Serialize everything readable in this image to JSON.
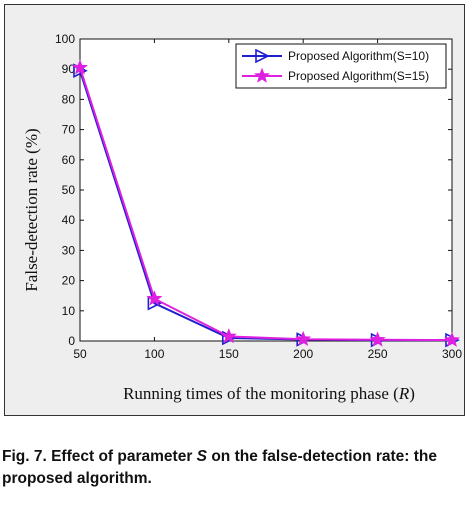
{
  "chart_data": {
    "type": "line",
    "title": "",
    "xlabel_text": "Running times of the monitoring phase (",
    "xlabel_var": "R",
    "xlabel_close": ")",
    "ylabel": "False-detection rate (%)",
    "x": [
      50,
      100,
      150,
      200,
      250,
      300
    ],
    "xlim": [
      50,
      300
    ],
    "ylim": [
      0,
      100
    ],
    "x_ticks": [
      "50",
      "100",
      "150",
      "200",
      "250",
      "300"
    ],
    "y_ticks": [
      "0",
      "10",
      "20",
      "30",
      "40",
      "50",
      "60",
      "70",
      "80",
      "90",
      "100"
    ],
    "grid": false,
    "legend_position": "top-right",
    "series": [
      {
        "name": "Proposed Algorithm(S=10)",
        "color": "#1f1fd0",
        "marker": "triangle-right",
        "values": [
          89.5,
          12.5,
          1.0,
          0.5,
          0.3,
          0.3
        ]
      },
      {
        "name": "Proposed Algorithm(S=15)",
        "color": "#e020e0",
        "marker": "star",
        "values": [
          90.5,
          14.0,
          1.5,
          0.6,
          0.4,
          0.3
        ]
      }
    ]
  },
  "caption": {
    "prefix": "Fig. 7. Effect of parameter ",
    "variable": "S",
    "suffix": " on the false-detection rate: the proposed algorithm."
  }
}
